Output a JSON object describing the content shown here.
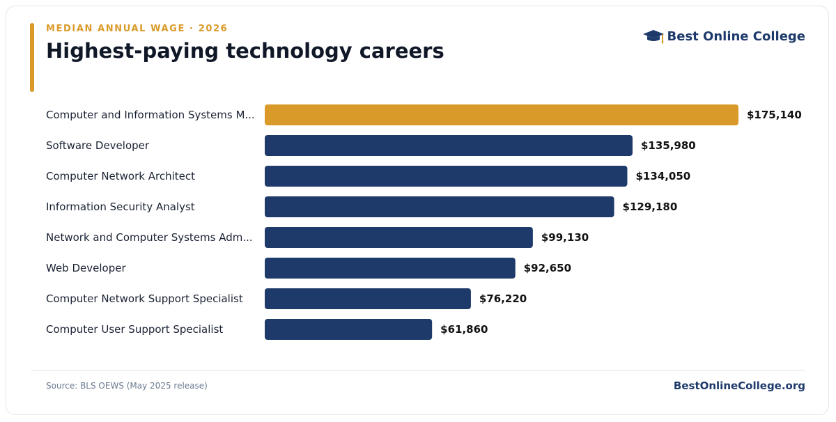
{
  "header": {
    "eyebrow": "MEDIAN ANNUAL WAGE · 2026",
    "title": "Highest-paying technology careers"
  },
  "brand": {
    "name": "Best Online College",
    "icon": "graduation-cap-icon"
  },
  "chart_data": {
    "type": "bar",
    "orientation": "horizontal",
    "title": "Highest-paying technology careers",
    "subtitle": "MEDIAN ANNUAL WAGE · 2026",
    "xlabel": "",
    "ylabel": "",
    "grid": false,
    "categories": [
      "Computer and Information Systems M...",
      "Software Developer",
      "Computer Network Architect",
      "Information Security Analyst",
      "Network and Computer Systems Adm...",
      "Web Developer",
      "Computer Network Support Specialist",
      "Computer User Support Specialist"
    ],
    "values": [
      175140,
      135980,
      134050,
      129180,
      99130,
      92650,
      76220,
      61860
    ],
    "value_labels": [
      "$175,140",
      "$135,980",
      "$134,050",
      "$129,180",
      "$99,130",
      "$92,650",
      "$76,220",
      "$61,860"
    ],
    "highlight_index": 0
  },
  "colors": {
    "highlight": "#d99a29",
    "bar": "#1e3a6b",
    "brand": "#1e3a6b",
    "accent": "#d99a29"
  },
  "footer": {
    "source": "Source: BLS OEWS (May 2025 release)",
    "site": "BestOnlineCollege.org"
  }
}
